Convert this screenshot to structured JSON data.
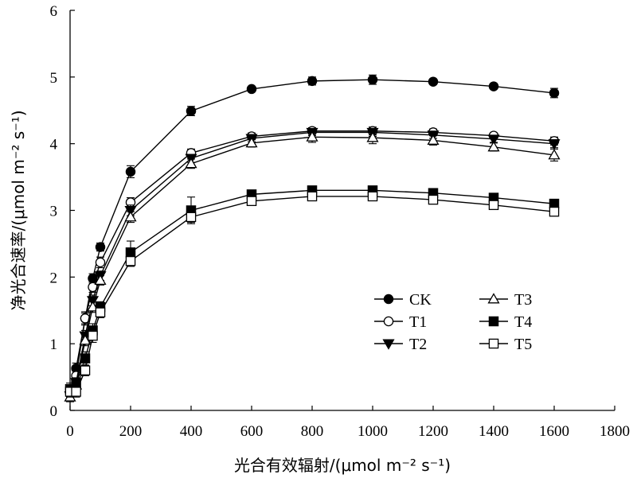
{
  "chart_data": {
    "type": "line",
    "xlabel": "光合有效辐射/(μmol m⁻² s⁻¹)",
    "ylabel": "净光合速率/(μmol m⁻² s⁻¹)",
    "xlim": [
      0,
      1800
    ],
    "ylim": [
      0,
      6
    ],
    "x_ticks": [
      "0",
      "200",
      "400",
      "600",
      "800",
      "1000",
      "1200",
      "1400",
      "1600",
      "1800"
    ],
    "y_ticks": [
      "0",
      "1",
      "2",
      "3",
      "4",
      "5",
      "6"
    ],
    "grid": false,
    "legend_position": "bottom-right",
    "x": [
      0,
      20,
      50,
      75,
      100,
      200,
      400,
      600,
      800,
      1000,
      1200,
      1400,
      1600
    ],
    "series": [
      {
        "name": "CK",
        "marker": "filled-circle",
        "values": [
          0.3,
          0.63,
          1.38,
          1.98,
          2.45,
          3.58,
          4.49,
          4.82,
          4.94,
          4.96,
          4.93,
          4.86,
          4.76
        ],
        "errors": [
          0.08,
          0.08,
          0.08,
          0.07,
          0.06,
          0.09,
          0.07,
          0.04,
          0.06,
          0.07,
          0.04,
          0.04,
          0.07
        ]
      },
      {
        "name": "T1",
        "marker": "open-circle",
        "values": [
          0.25,
          0.52,
          1.38,
          1.85,
          2.22,
          3.12,
          3.86,
          4.11,
          4.19,
          4.19,
          4.17,
          4.12,
          4.04
        ],
        "errors": [
          0.07,
          0.07,
          0.1,
          0.08,
          0.08,
          0.07,
          0.06,
          0.05,
          0.05,
          0.06,
          0.05,
          0.04,
          0.06
        ]
      },
      {
        "name": "T2",
        "marker": "filled-triangle-down",
        "values": [
          0.22,
          0.42,
          1.12,
          1.65,
          2.02,
          3.0,
          3.78,
          4.08,
          4.17,
          4.17,
          4.13,
          4.07,
          4.0
        ],
        "errors": [
          0.07,
          0.07,
          0.08,
          0.08,
          0.07,
          0.08,
          0.06,
          0.05,
          0.05,
          0.06,
          0.05,
          0.05,
          0.06
        ]
      },
      {
        "name": "T3",
        "marker": "open-triangle-up",
        "values": [
          0.2,
          0.38,
          1.05,
          1.55,
          1.95,
          2.9,
          3.7,
          4.01,
          4.1,
          4.09,
          4.05,
          3.95,
          3.83
        ],
        "errors": [
          0.07,
          0.07,
          0.08,
          0.08,
          0.07,
          0.08,
          0.07,
          0.06,
          0.08,
          0.09,
          0.07,
          0.06,
          0.09
        ]
      },
      {
        "name": "T4",
        "marker": "filled-square",
        "values": [
          0.32,
          0.4,
          0.78,
          1.2,
          1.55,
          2.37,
          3.0,
          3.24,
          3.3,
          3.3,
          3.26,
          3.19,
          3.1
        ],
        "errors": [
          0.09,
          0.08,
          0.1,
          0.1,
          0.08,
          0.17,
          0.2,
          0.04,
          0.05,
          0.06,
          0.05,
          0.05,
          0.05
        ]
      },
      {
        "name": "T5",
        "marker": "open-square",
        "values": [
          0.28,
          0.28,
          0.6,
          1.12,
          1.47,
          2.24,
          2.9,
          3.14,
          3.21,
          3.21,
          3.16,
          3.08,
          2.98
        ],
        "errors": [
          0.08,
          0.08,
          0.08,
          0.1,
          0.08,
          0.08,
          0.08,
          0.05,
          0.05,
          0.05,
          0.05,
          0.05,
          0.05
        ]
      }
    ]
  }
}
